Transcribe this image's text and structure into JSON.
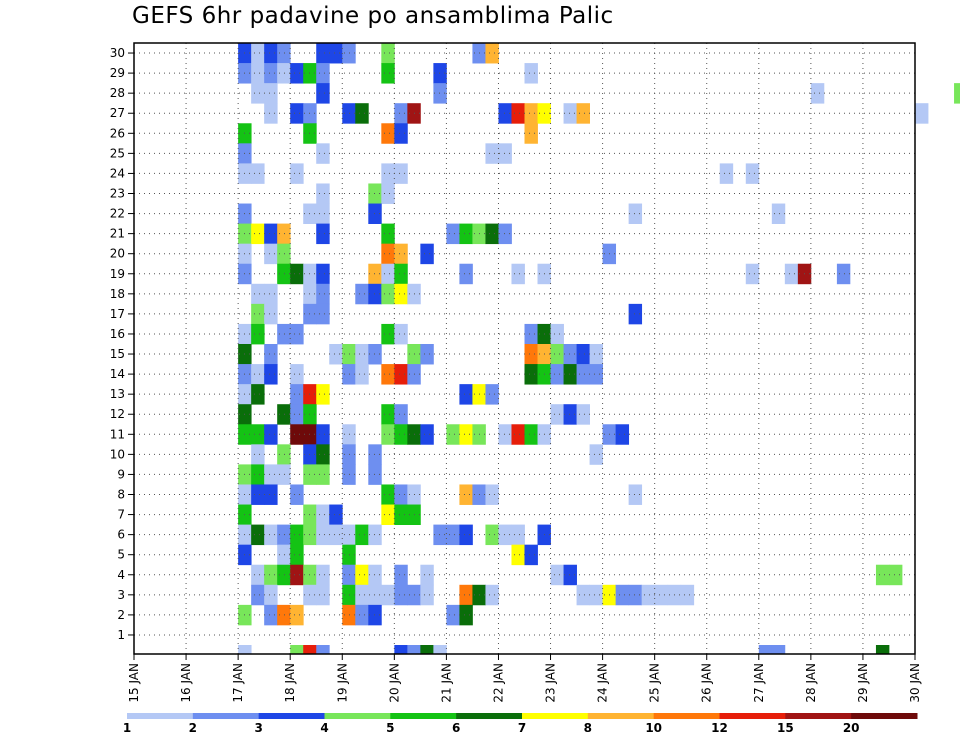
{
  "chart_data": {
    "type": "heatmap",
    "title": "GEFS 6hr padavine po ansamblima Palic",
    "y_ticks": [
      1,
      2,
      3,
      4,
      5,
      6,
      7,
      8,
      9,
      10,
      11,
      12,
      13,
      14,
      15,
      16,
      17,
      18,
      19,
      20,
      21,
      22,
      23,
      24,
      25,
      26,
      27,
      28,
      29,
      30
    ],
    "x_tick_labels": [
      "15 JAN",
      "16 JAN",
      "17 JAN",
      "18 JAN",
      "19 JAN",
      "20 JAN",
      "21 JAN",
      "22 JAN",
      "23 JAN",
      "24 JAN",
      "25 JAN",
      "26 JAN",
      "27 JAN",
      "28 JAN",
      "29 JAN",
      "30 JAN"
    ],
    "x_range": [
      "15 JAN",
      "30 JAN"
    ],
    "steps_per_day": 4,
    "y_range": [
      0,
      30
    ],
    "grid": true,
    "legend": {
      "position": "bottom",
      "labels": [
        "1",
        "2",
        "3",
        "4",
        "5",
        "6",
        "7",
        "8",
        "10",
        "12",
        "15",
        "20"
      ],
      "colors": [
        "#b4c8f5",
        "#6e8ff0",
        "#1e46e6",
        "#78e65a",
        "#14c314",
        "#0a6e0a",
        "#ffff00",
        "#ffb432",
        "#ff780a",
        "#e61e0a",
        "#a01414",
        "#6e0a0a"
      ]
    },
    "cells": [
      [
        30,
        8,
        3
      ],
      [
        30,
        9,
        1
      ],
      [
        30,
        10,
        3
      ],
      [
        30,
        11,
        2
      ],
      [
        30,
        14,
        3
      ],
      [
        30,
        15,
        3
      ],
      [
        30,
        16,
        2
      ],
      [
        30,
        19,
        4
      ],
      [
        30,
        26,
        2
      ],
      [
        30,
        27,
        8
      ],
      [
        29,
        8,
        2
      ],
      [
        29,
        9,
        1
      ],
      [
        29,
        10,
        2
      ],
      [
        29,
        11,
        1
      ],
      [
        29,
        12,
        3
      ],
      [
        29,
        13,
        5
      ],
      [
        29,
        14,
        2
      ],
      [
        29,
        19,
        5
      ],
      [
        29,
        23,
        3
      ],
      [
        29,
        30,
        1
      ],
      [
        28,
        9,
        1
      ],
      [
        28,
        10,
        1
      ],
      [
        28,
        14,
        3
      ],
      [
        28,
        23,
        2
      ],
      [
        28,
        52,
        1
      ],
      [
        28,
        63,
        4
      ],
      [
        27,
        10,
        1
      ],
      [
        27,
        12,
        3
      ],
      [
        27,
        13,
        2
      ],
      [
        27,
        16,
        3
      ],
      [
        27,
        17,
        6
      ],
      [
        27,
        20,
        2
      ],
      [
        27,
        21,
        11
      ],
      [
        27,
        28,
        3
      ],
      [
        27,
        29,
        10
      ],
      [
        27,
        30,
        8
      ],
      [
        27,
        31,
        7
      ],
      [
        27,
        33,
        1
      ],
      [
        27,
        34,
        8
      ],
      [
        27,
        60,
        1
      ],
      [
        26,
        8,
        5
      ],
      [
        26,
        13,
        5
      ],
      [
        26,
        19,
        9
      ],
      [
        26,
        20,
        3
      ],
      [
        26,
        30,
        8
      ],
      [
        25,
        8,
        2
      ],
      [
        25,
        14,
        1
      ],
      [
        25,
        27,
        1
      ],
      [
        25,
        28,
        1
      ],
      [
        24,
        8,
        1
      ],
      [
        24,
        9,
        1
      ],
      [
        24,
        12,
        1
      ],
      [
        24,
        19,
        1
      ],
      [
        24,
        20,
        1
      ],
      [
        24,
        45,
        1
      ],
      [
        24,
        47,
        1
      ],
      [
        24,
        68,
        2
      ],
      [
        24,
        69,
        1
      ],
      [
        24,
        70,
        2
      ],
      [
        23,
        14,
        1
      ],
      [
        23,
        18,
        4
      ],
      [
        23,
        19,
        1
      ],
      [
        22,
        8,
        2
      ],
      [
        22,
        13,
        1
      ],
      [
        22,
        14,
        1
      ],
      [
        22,
        18,
        3
      ],
      [
        22,
        38,
        1
      ],
      [
        22,
        49,
        1
      ],
      [
        22,
        68,
        8
      ],
      [
        22,
        69,
        5
      ],
      [
        21,
        8,
        4
      ],
      [
        21,
        9,
        7
      ],
      [
        21,
        10,
        3
      ],
      [
        21,
        11,
        8
      ],
      [
        21,
        14,
        3
      ],
      [
        21,
        19,
        5
      ],
      [
        21,
        24,
        2
      ],
      [
        21,
        25,
        5
      ],
      [
        21,
        26,
        4
      ],
      [
        21,
        27,
        6
      ],
      [
        21,
        28,
        2
      ],
      [
        20,
        8,
        1
      ],
      [
        20,
        10,
        1
      ],
      [
        20,
        11,
        4
      ],
      [
        20,
        19,
        9
      ],
      [
        20,
        20,
        8
      ],
      [
        20,
        22,
        3
      ],
      [
        20,
        36,
        2
      ],
      [
        19,
        8,
        2
      ],
      [
        19,
        11,
        5
      ],
      [
        19,
        12,
        6
      ],
      [
        19,
        13,
        1
      ],
      [
        19,
        14,
        3
      ],
      [
        19,
        18,
        8
      ],
      [
        19,
        19,
        1
      ],
      [
        19,
        20,
        5
      ],
      [
        19,
        25,
        2
      ],
      [
        19,
        29,
        1
      ],
      [
        19,
        31,
        1
      ],
      [
        19,
        47,
        1
      ],
      [
        19,
        50,
        1
      ],
      [
        19,
        51,
        11
      ],
      [
        19,
        54,
        2
      ],
      [
        18,
        9,
        1
      ],
      [
        18,
        10,
        1
      ],
      [
        18,
        13,
        1
      ],
      [
        18,
        14,
        2
      ],
      [
        18,
        17,
        2
      ],
      [
        18,
        18,
        3
      ],
      [
        18,
        19,
        4
      ],
      [
        18,
        20,
        7
      ],
      [
        18,
        21,
        1
      ],
      [
        17,
        9,
        4
      ],
      [
        17,
        10,
        1
      ],
      [
        17,
        13,
        2
      ],
      [
        17,
        14,
        2
      ],
      [
        17,
        38,
        3
      ],
      [
        16,
        8,
        1
      ],
      [
        16,
        9,
        5
      ],
      [
        16,
        11,
        2
      ],
      [
        16,
        12,
        2
      ],
      [
        16,
        19,
        5
      ],
      [
        16,
        20,
        1
      ],
      [
        16,
        30,
        2
      ],
      [
        16,
        31,
        6
      ],
      [
        16,
        32,
        1
      ],
      [
        15,
        8,
        6
      ],
      [
        15,
        10,
        2
      ],
      [
        15,
        15,
        1
      ],
      [
        15,
        16,
        4
      ],
      [
        15,
        17,
        1
      ],
      [
        15,
        18,
        2
      ],
      [
        15,
        21,
        4
      ],
      [
        15,
        22,
        2
      ],
      [
        15,
        30,
        9
      ],
      [
        15,
        31,
        8
      ],
      [
        15,
        32,
        4
      ],
      [
        15,
        33,
        2
      ],
      [
        15,
        34,
        3
      ],
      [
        15,
        35,
        1
      ],
      [
        14,
        8,
        2
      ],
      [
        14,
        9,
        1
      ],
      [
        14,
        10,
        3
      ],
      [
        14,
        12,
        1
      ],
      [
        14,
        16,
        2
      ],
      [
        14,
        17,
        1
      ],
      [
        14,
        19,
        9
      ],
      [
        14,
        20,
        10
      ],
      [
        14,
        21,
        2
      ],
      [
        14,
        30,
        6
      ],
      [
        14,
        31,
        5
      ],
      [
        14,
        32,
        2
      ],
      [
        14,
        33,
        6
      ],
      [
        14,
        34,
        2
      ],
      [
        14,
        35,
        2
      ],
      [
        13,
        8,
        1
      ],
      [
        13,
        9,
        6
      ],
      [
        13,
        12,
        2
      ],
      [
        13,
        13,
        10
      ],
      [
        13,
        14,
        7
      ],
      [
        13,
        25,
        3
      ],
      [
        13,
        26,
        7
      ],
      [
        13,
        27,
        2
      ],
      [
        12,
        8,
        6
      ],
      [
        12,
        11,
        6
      ],
      [
        12,
        12,
        2
      ],
      [
        12,
        13,
        5
      ],
      [
        12,
        19,
        5
      ],
      [
        12,
        20,
        2
      ],
      [
        12,
        32,
        1
      ],
      [
        12,
        33,
        3
      ],
      [
        12,
        34,
        1
      ],
      [
        11,
        8,
        5
      ],
      [
        11,
        9,
        5
      ],
      [
        11,
        10,
        3
      ],
      [
        11,
        12,
        12
      ],
      [
        11,
        13,
        12
      ],
      [
        11,
        14,
        3
      ],
      [
        11,
        16,
        1
      ],
      [
        11,
        19,
        4
      ],
      [
        11,
        20,
        5
      ],
      [
        11,
        21,
        6
      ],
      [
        11,
        22,
        3
      ],
      [
        11,
        24,
        4
      ],
      [
        11,
        25,
        7
      ],
      [
        11,
        26,
        4
      ],
      [
        11,
        28,
        1
      ],
      [
        11,
        29,
        10
      ],
      [
        11,
        30,
        5
      ],
      [
        11,
        31,
        1
      ],
      [
        11,
        36,
        2
      ],
      [
        11,
        37,
        3
      ],
      [
        10,
        9,
        1
      ],
      [
        10,
        11,
        4
      ],
      [
        10,
        13,
        3
      ],
      [
        10,
        14,
        6
      ],
      [
        10,
        16,
        2
      ],
      [
        10,
        18,
        2
      ],
      [
        10,
        35,
        1
      ],
      [
        9,
        8,
        4
      ],
      [
        9,
        9,
        5
      ],
      [
        9,
        10,
        1
      ],
      [
        9,
        11,
        1
      ],
      [
        9,
        13,
        4
      ],
      [
        9,
        14,
        4
      ],
      [
        9,
        16,
        2
      ],
      [
        9,
        18,
        2
      ],
      [
        8,
        8,
        1
      ],
      [
        8,
        9,
        3
      ],
      [
        8,
        10,
        3
      ],
      [
        8,
        12,
        2
      ],
      [
        8,
        19,
        5
      ],
      [
        8,
        20,
        2
      ],
      [
        8,
        21,
        1
      ],
      [
        8,
        25,
        8
      ],
      [
        8,
        26,
        2
      ],
      [
        8,
        27,
        1
      ],
      [
        8,
        38,
        1
      ],
      [
        7,
        8,
        5
      ],
      [
        7,
        13,
        4
      ],
      [
        7,
        14,
        1
      ],
      [
        7,
        15,
        3
      ],
      [
        7,
        19,
        7
      ],
      [
        7,
        20,
        5
      ],
      [
        7,
        21,
        5
      ],
      [
        6,
        8,
        1
      ],
      [
        6,
        9,
        6
      ],
      [
        6,
        10,
        1
      ],
      [
        6,
        11,
        2
      ],
      [
        6,
        12,
        5
      ],
      [
        6,
        13,
        4
      ],
      [
        6,
        14,
        1
      ],
      [
        6,
        15,
        1
      ],
      [
        6,
        16,
        1
      ],
      [
        6,
        17,
        5
      ],
      [
        6,
        18,
        1
      ],
      [
        6,
        23,
        2
      ],
      [
        6,
        24,
        2
      ],
      [
        6,
        25,
        3
      ],
      [
        6,
        27,
        4
      ],
      [
        6,
        28,
        1
      ],
      [
        6,
        29,
        1
      ],
      [
        6,
        31,
        3
      ],
      [
        5,
        8,
        3
      ],
      [
        5,
        11,
        1
      ],
      [
        5,
        12,
        5
      ],
      [
        5,
        16,
        5
      ],
      [
        5,
        29,
        7
      ],
      [
        5,
        30,
        3
      ],
      [
        4,
        9,
        1
      ],
      [
        4,
        10,
        4
      ],
      [
        4,
        11,
        5
      ],
      [
        4,
        12,
        11
      ],
      [
        4,
        13,
        4
      ],
      [
        4,
        14,
        1
      ],
      [
        4,
        16,
        2
      ],
      [
        4,
        17,
        7
      ],
      [
        4,
        18,
        1
      ],
      [
        4,
        20,
        2
      ],
      [
        4,
        22,
        1
      ],
      [
        4,
        32,
        1
      ],
      [
        4,
        33,
        3
      ],
      [
        4,
        57,
        4
      ],
      [
        4,
        58,
        4
      ],
      [
        3,
        9,
        2
      ],
      [
        3,
        10,
        1
      ],
      [
        3,
        13,
        1
      ],
      [
        3,
        14,
        1
      ],
      [
        3,
        16,
        5
      ],
      [
        3,
        17,
        1
      ],
      [
        3,
        18,
        1
      ],
      [
        3,
        19,
        1
      ],
      [
        3,
        20,
        2
      ],
      [
        3,
        21,
        2
      ],
      [
        3,
        22,
        1
      ],
      [
        3,
        25,
        9
      ],
      [
        3,
        26,
        6
      ],
      [
        3,
        27,
        1
      ],
      [
        3,
        34,
        1
      ],
      [
        3,
        35,
        1
      ],
      [
        3,
        36,
        7
      ],
      [
        3,
        37,
        2
      ],
      [
        3,
        38,
        2
      ],
      [
        3,
        39,
        1
      ],
      [
        3,
        40,
        1
      ],
      [
        3,
        41,
        1
      ],
      [
        3,
        42,
        1
      ],
      [
        2,
        8,
        4
      ],
      [
        2,
        10,
        2
      ],
      [
        2,
        11,
        9
      ],
      [
        2,
        12,
        8
      ],
      [
        2,
        16,
        9
      ],
      [
        2,
        17,
        2
      ],
      [
        2,
        18,
        3
      ],
      [
        2,
        24,
        2
      ],
      [
        2,
        25,
        6
      ]
    ],
    "bottom_row_cells": [
      [
        8,
        1
      ],
      [
        12,
        4
      ],
      [
        13,
        10
      ],
      [
        14,
        2
      ],
      [
        20,
        3
      ],
      [
        21,
        2
      ],
      [
        22,
        6
      ],
      [
        23,
        1
      ],
      [
        48,
        2
      ],
      [
        49,
        2
      ],
      [
        57,
        6
      ]
    ]
  }
}
